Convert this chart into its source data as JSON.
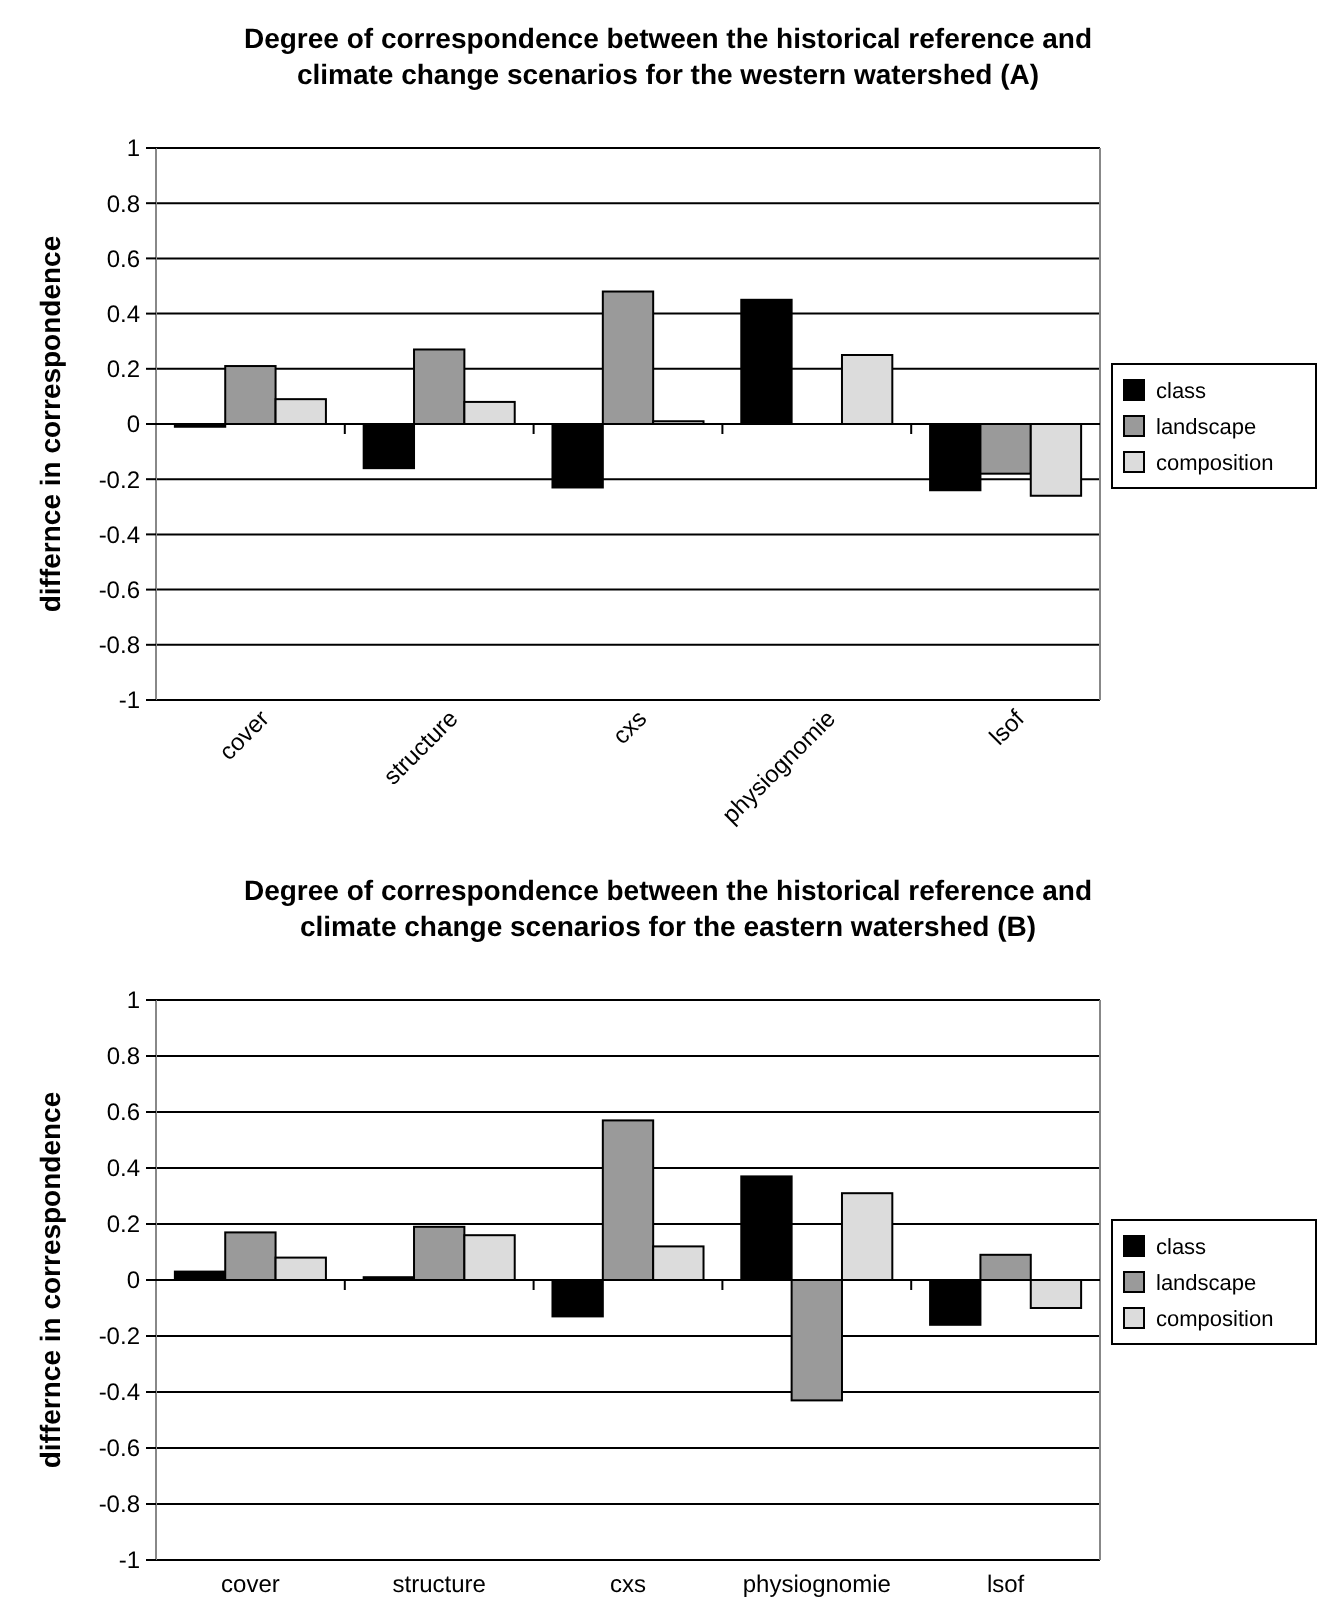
{
  "chart_data": [
    {
      "type": "bar",
      "title": "Degree of correspondence between the historical reference and climate change scenarios for the western watershed (A)",
      "ylabel": "differnce in correspondence",
      "categories": [
        "cover",
        "structure",
        "cxs",
        "physiognomie",
        "lsof"
      ],
      "series": [
        {
          "name": "class",
          "color": "#000000",
          "values": [
            -0.01,
            -0.16,
            -0.23,
            0.45,
            -0.24
          ]
        },
        {
          "name": "landscape",
          "color": "#9a9a9a",
          "values": [
            0.21,
            0.27,
            0.48,
            0,
            -0.18
          ]
        },
        {
          "name": "composition",
          "color": "#dcdcdc",
          "values": [
            0.09,
            0.08,
            0.01,
            0.25,
            -0.26
          ]
        }
      ],
      "ylim": [
        -1,
        1
      ],
      "yticks": [
        -1,
        -0.8,
        -0.6,
        -0.4,
        -0.2,
        0,
        0.2,
        0.4,
        0.6,
        0.8,
        1
      ],
      "grid": "y",
      "legend": "right"
    },
    {
      "type": "bar",
      "title": "Degree of correspondence between the historical reference and climate change scenarios for the eastern watershed (B)",
      "ylabel": "differnce in correspondence",
      "categories": [
        "cover",
        "structure",
        "cxs",
        "physiognomie",
        "lsof"
      ],
      "series": [
        {
          "name": "class",
          "color": "#000000",
          "values": [
            0.03,
            0.01,
            -0.13,
            0.37,
            -0.16
          ]
        },
        {
          "name": "landscape",
          "color": "#9a9a9a",
          "values": [
            0.17,
            0.19,
            0.57,
            -0.43,
            0.09
          ]
        },
        {
          "name": "composition",
          "color": "#dcdcdc",
          "values": [
            0.08,
            0.16,
            0.12,
            0.31,
            -0.1
          ]
        }
      ],
      "ylim": [
        -1,
        1
      ],
      "yticks": [
        -1,
        -0.8,
        -0.6,
        -0.4,
        -0.2,
        0,
        0.2,
        0.4,
        0.6,
        0.8,
        1
      ],
      "grid": "y",
      "legend": "right"
    }
  ]
}
